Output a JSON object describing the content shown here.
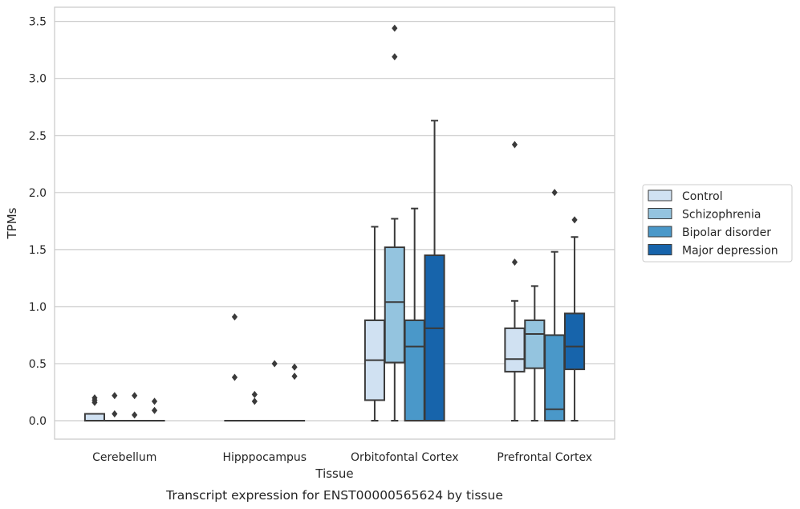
{
  "chart_data": {
    "type": "box",
    "xlabel": "Tissue",
    "ylabel": "TPMs",
    "caption": "Transcript expression for ENST00000565624 by tissue",
    "ylim": [
      -0.17,
      3.62
    ],
    "yticks": [
      "0.0",
      "0.5",
      "1.0",
      "1.5",
      "2.0",
      "2.5",
      "3.0",
      "3.5"
    ],
    "grid": "horizontal",
    "legend_position": "right",
    "categories": [
      "Cerebellum",
      "Hipppocampus",
      "Orbitofontal Cortex",
      "Prefrontal Cortex"
    ],
    "series": [
      {
        "name": "Control",
        "color": "#d0e1f2",
        "boxes": [
          {
            "whislo": 0.0,
            "q1": 0.0,
            "med": 0.0,
            "q3": 0.06,
            "whishi": 0.06,
            "fliers": [
              0.16,
              0.18,
              0.2
            ]
          },
          {
            "whislo": 0.0,
            "q1": 0.0,
            "med": 0.0,
            "q3": 0.0,
            "whishi": 0.0,
            "fliers": [
              0.38,
              0.91
            ]
          },
          {
            "whislo": 0.0,
            "q1": 0.18,
            "med": 0.53,
            "q3": 0.88,
            "whishi": 1.7,
            "fliers": []
          },
          {
            "whislo": 0.0,
            "q1": 0.43,
            "med": 0.54,
            "q3": 0.81,
            "whishi": 1.05,
            "fliers": [
              1.39,
              2.42
            ]
          }
        ]
      },
      {
        "name": "Schizophrenia",
        "color": "#94c4df",
        "boxes": [
          {
            "whislo": 0.0,
            "q1": 0.0,
            "med": 0.0,
            "q3": 0.0,
            "whishi": 0.0,
            "fliers": [
              0.06,
              0.22
            ]
          },
          {
            "whislo": 0.0,
            "q1": 0.0,
            "med": 0.0,
            "q3": 0.0,
            "whishi": 0.0,
            "fliers": [
              0.17,
              0.23
            ]
          },
          {
            "whislo": 0.0,
            "q1": 0.51,
            "med": 1.04,
            "q3": 1.52,
            "whishi": 1.77,
            "fliers": [
              3.19,
              3.44
            ]
          },
          {
            "whislo": 0.0,
            "q1": 0.46,
            "med": 0.76,
            "q3": 0.88,
            "whishi": 1.18,
            "fliers": []
          }
        ]
      },
      {
        "name": "Bipolar disorder",
        "color": "#4a98c9",
        "boxes": [
          {
            "whislo": 0.0,
            "q1": 0.0,
            "med": 0.0,
            "q3": 0.0,
            "whishi": 0.0,
            "fliers": [
              0.05,
              0.22
            ]
          },
          {
            "whislo": 0.0,
            "q1": 0.0,
            "med": 0.0,
            "q3": 0.0,
            "whishi": 0.0,
            "fliers": [
              0.5
            ]
          },
          {
            "whislo": 0.0,
            "q1": 0.0,
            "med": 0.65,
            "q3": 0.88,
            "whishi": 1.86,
            "fliers": []
          },
          {
            "whislo": 0.0,
            "q1": 0.0,
            "med": 0.1,
            "q3": 0.75,
            "whishi": 1.48,
            "fliers": [
              2.0
            ]
          }
        ]
      },
      {
        "name": "Major depression",
        "color": "#1764ab",
        "boxes": [
          {
            "whislo": 0.0,
            "q1": 0.0,
            "med": 0.0,
            "q3": 0.0,
            "whishi": 0.0,
            "fliers": [
              0.09,
              0.17
            ]
          },
          {
            "whislo": 0.0,
            "q1": 0.0,
            "med": 0.0,
            "q3": 0.0,
            "whishi": 0.0,
            "fliers": [
              0.39,
              0.47
            ]
          },
          {
            "whislo": 0.0,
            "q1": 0.0,
            "med": 0.81,
            "q3": 1.45,
            "whishi": 2.63,
            "fliers": []
          },
          {
            "whislo": 0.0,
            "q1": 0.45,
            "med": 0.65,
            "q3": 0.94,
            "whishi": 1.61,
            "fliers": [
              1.76
            ]
          }
        ]
      }
    ]
  }
}
